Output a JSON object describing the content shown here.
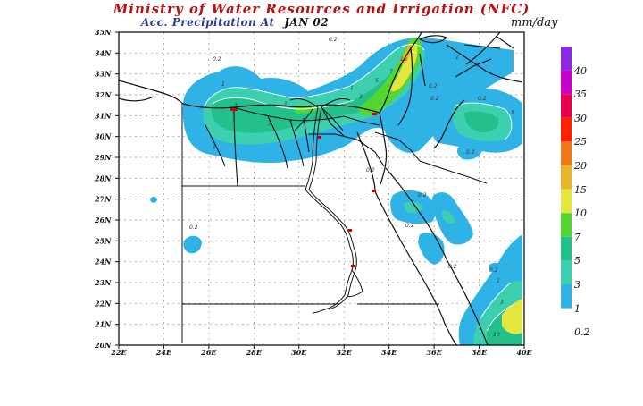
{
  "header": {
    "title": "Ministry of Water Resources and Irrigation (NFC)",
    "subtitle": "Acc. Precipitation   At",
    "date": "JAN 02",
    "units": "mm/day"
  },
  "map": {
    "lat_labels": [
      "35N",
      "34N",
      "33N",
      "32N",
      "31N",
      "30N",
      "29N",
      "28N",
      "27N",
      "26N",
      "25N",
      "24N",
      "23N",
      "22N",
      "21N",
      "20N"
    ],
    "lon_labels": [
      "22E",
      "24E",
      "26E",
      "28E",
      "30E",
      "32E",
      "34E",
      "36E",
      "38E",
      "40E"
    ],
    "contour_labels": [
      "0.2",
      "1",
      "3",
      "5",
      "7",
      "10"
    ]
  },
  "legend": {
    "items": [
      {
        "label": "40",
        "color": "#8a2be2"
      },
      {
        "label": "35",
        "color": "#cc00cc"
      },
      {
        "label": "30",
        "color": "#e6004d"
      },
      {
        "label": "25",
        "color": "#ff2200"
      },
      {
        "label": "20",
        "color": "#f07a1a"
      },
      {
        "label": "15",
        "color": "#e8b62c"
      },
      {
        "label": "10",
        "color": "#e6e640"
      },
      {
        "label": "7",
        "color": "#55d52f"
      },
      {
        "label": "5",
        "color": "#22c08a"
      },
      {
        "label": "3",
        "color": "#3ccfb0"
      },
      {
        "label": "1",
        "color": "#2fb2e6"
      },
      {
        "label": "0.2",
        "color": "#ffffff"
      }
    ]
  },
  "colors": {
    "title": "#b51212",
    "subtitle": "#2a3a9a",
    "frame": "#000000"
  }
}
